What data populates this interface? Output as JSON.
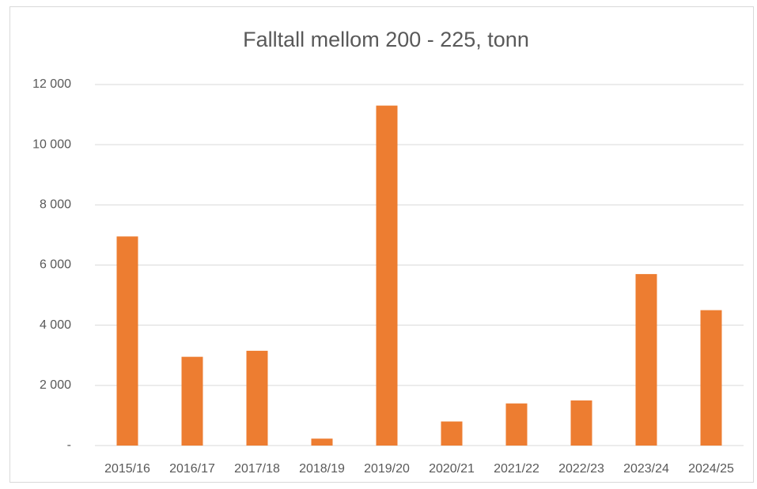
{
  "chart_data": {
    "type": "bar",
    "title": "Falltall mellom 200 - 225, tonn",
    "categories": [
      "2015/16",
      "2016/17",
      "2017/18",
      "2018/19",
      "2019/20",
      "2020/21",
      "2021/22",
      "2022/23",
      "2023/24",
      "2024/25"
    ],
    "values": [
      6950,
      2950,
      3150,
      230,
      11300,
      800,
      1400,
      1500,
      5700,
      4500
    ],
    "color": "#ed7d31",
    "ylim": [
      0,
      12000
    ],
    "yticks": [
      {
        "value": 0,
        "label": "-"
      },
      {
        "value": 2000,
        "label": "2 000"
      },
      {
        "value": 4000,
        "label": "4 000"
      },
      {
        "value": 6000,
        "label": "6 000"
      },
      {
        "value": 8000,
        "label": "8 000"
      },
      {
        "value": 10000,
        "label": "10 000"
      },
      {
        "value": 12000,
        "label": "12 000"
      }
    ],
    "grid": true
  }
}
